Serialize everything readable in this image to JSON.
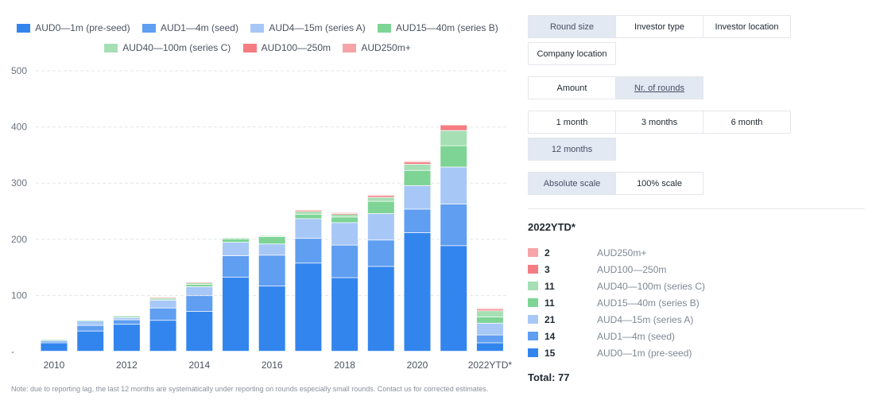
{
  "legend": {
    "items": [
      {
        "label": "AUD0—1m (pre-seed)",
        "color": "#3385ee"
      },
      {
        "label": "AUD1—4m (seed)",
        "color": "#5f9ef1"
      },
      {
        "label": "AUD4—15m (series A)",
        "color": "#a7c8f6"
      },
      {
        "label": "AUD15—40m (series B)",
        "color": "#7ed495"
      },
      {
        "label": "AUD40—100m (series C)",
        "color": "#a6dfb4"
      },
      {
        "label": "AUD100—250m",
        "color": "#f47d83"
      },
      {
        "label": "AUD250m+",
        "color": "#f6a4a8"
      }
    ]
  },
  "chart_data": {
    "type": "bar",
    "stacked": true,
    "categories": [
      "2010",
      "2011",
      "2012",
      "2013",
      "2014",
      "2015",
      "2016",
      "2017",
      "2018",
      "2019",
      "2020",
      "2021",
      "2022YTD*"
    ],
    "x_tick_labels": [
      "2010",
      "",
      "2012",
      "",
      "2014",
      "",
      "2016",
      "",
      "2018",
      "",
      "2020",
      "",
      "2022YTD*"
    ],
    "ylim": [
      0,
      500
    ],
    "yticks": [
      0,
      100,
      200,
      300,
      400,
      500
    ],
    "ytick_labels": [
      "-",
      "100",
      "200",
      "300",
      "400",
      "500"
    ],
    "grid": true,
    "legend_position": "top",
    "series": [
      {
        "name": "AUD0—1m (pre-seed)",
        "color": "#3385ee",
        "values": [
          15,
          36,
          48,
          55,
          71,
          132,
          116,
          157,
          131,
          151,
          211,
          188,
          15
        ]
      },
      {
        "name": "AUD1—4m (seed)",
        "color": "#5f9ef1",
        "values": [
          3,
          10,
          8,
          22,
          28,
          38,
          55,
          44,
          58,
          47,
          42,
          74,
          14
        ]
      },
      {
        "name": "AUD4—15m (series A)",
        "color": "#a7c8f6",
        "values": [
          2,
          8,
          4,
          14,
          16,
          24,
          20,
          35,
          40,
          47,
          42,
          66,
          21
        ]
      },
      {
        "name": "AUD15—40m (series B)",
        "color": "#7ed495",
        "values": [
          0,
          0,
          2,
          2,
          4,
          6,
          13,
          8,
          10,
          22,
          27,
          38,
          11
        ]
      },
      {
        "name": "AUD40—100m (series C)",
        "color": "#a6dfb4",
        "values": [
          1,
          1,
          1,
          2,
          3,
          2,
          2,
          5,
          5,
          7,
          11,
          27,
          11
        ]
      },
      {
        "name": "AUD100—250m",
        "color": "#f47d83",
        "values": [
          0,
          0,
          0,
          0,
          0,
          0,
          0,
          1,
          1,
          3,
          4,
          10,
          3
        ]
      },
      {
        "name": "AUD250m+",
        "color": "#f6a4a8",
        "values": [
          0,
          0,
          0,
          1,
          1,
          0,
          0,
          2,
          2,
          1,
          2,
          0,
          2
        ]
      }
    ]
  },
  "note": "Note: due to reporting lag, the last 12 months are systematically under reporting on rounds especially small rounds. Contact us for corrected estimates.",
  "controls": {
    "dimension": {
      "items": [
        "Round size",
        "Investor type",
        "Investor location",
        "Company location"
      ],
      "active": 0
    },
    "measure": {
      "items": [
        "Amount",
        "Nr. of rounds"
      ],
      "active": 1
    },
    "period": {
      "items": [
        "1 month",
        "3 months",
        "6 month",
        "12 months"
      ],
      "active": 3
    },
    "scale": {
      "items": [
        "Absolute scale",
        "100% scale"
      ],
      "active": 0
    }
  },
  "summary": {
    "title": "2022YTD*",
    "rows": [
      {
        "count": "2",
        "label": "AUD250m+",
        "color": "#f6a4a8"
      },
      {
        "count": "3",
        "label": "AUD100—250m",
        "color": "#f47d83"
      },
      {
        "count": "11",
        "label": "AUD40—100m (series C)",
        "color": "#a6dfb4"
      },
      {
        "count": "11",
        "label": "AUD15—40m (series B)",
        "color": "#7ed495"
      },
      {
        "count": "21",
        "label": "AUD4—15m (series A)",
        "color": "#a7c8f6"
      },
      {
        "count": "14",
        "label": "AUD1—4m (seed)",
        "color": "#5f9ef1"
      },
      {
        "count": "15",
        "label": "AUD0—1m (pre-seed)",
        "color": "#3385ee"
      }
    ],
    "total": "Total: 77"
  }
}
